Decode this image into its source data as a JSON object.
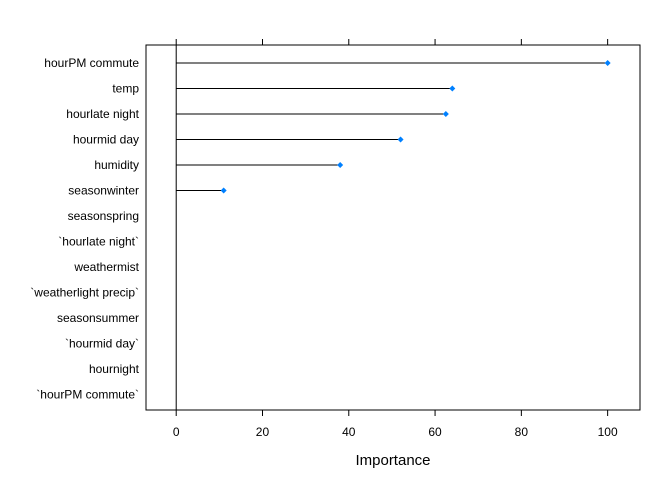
{
  "chart_data": {
    "type": "dotplot",
    "title": "",
    "xlabel": "Importance",
    "ylabel": "",
    "xlim": [
      -7,
      107.5
    ],
    "xticks": [
      0,
      20,
      40,
      60,
      80,
      100
    ],
    "zero_line": true,
    "point_color": "#0080ff",
    "line_color": "#000000",
    "categories": [
      "hourPM commute",
      "temp",
      "hourlate night",
      "hourmid day",
      "humidity",
      "seasonwinter",
      "seasonspring",
      "`hourlate night`",
      "weathermist",
      "`weatherlight precip`",
      "seasonsummer",
      "`hourmid day`",
      "hournight",
      "`hourPM commute`"
    ],
    "values": [
      100,
      64,
      62.5,
      52,
      38,
      11,
      0,
      0,
      0,
      0,
      0,
      0,
      0,
      0
    ]
  }
}
